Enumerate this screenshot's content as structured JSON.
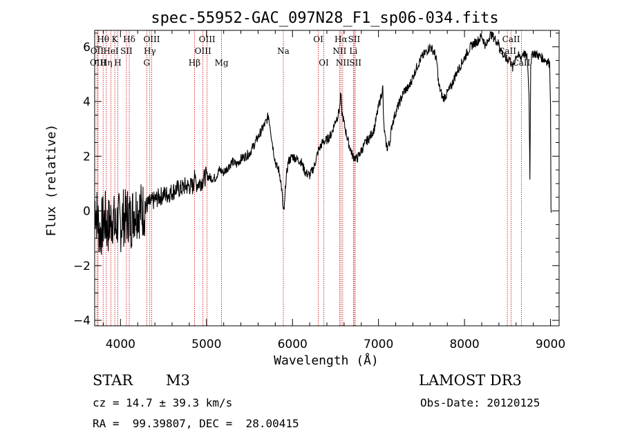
{
  "chart_data": {
    "type": "line",
    "title": "spec-55952-GAC_097N28_F1_sp06-034.fits",
    "xlabel": "Wavelength (Å)",
    "ylabel": "Flux (relative)",
    "xlim": [
      3700,
      9100
    ],
    "ylim": [
      -4.2,
      6.6
    ],
    "xticks": [
      4000,
      5000,
      6000,
      7000,
      8000,
      9000
    ],
    "yticks": [
      -4,
      -2,
      0,
      2,
      4,
      6
    ],
    "series": [
      {
        "name": "spectrum",
        "x": [
          3700,
          3730,
          3760,
          3790,
          3820,
          3850,
          3880,
          3910,
          3940,
          3970,
          4000,
          4030,
          4060,
          4090,
          4120,
          4150,
          4200,
          4250,
          4300,
          4350,
          4400,
          4450,
          4500,
          4550,
          4600,
          4650,
          4700,
          4750,
          4800,
          4850,
          4861,
          4870,
          4900,
          4950,
          5000,
          5050,
          5100,
          5150,
          5200,
          5250,
          5300,
          5350,
          5400,
          5450,
          5500,
          5550,
          5600,
          5650,
          5700,
          5720,
          5740,
          5760,
          5780,
          5800,
          5820,
          5840,
          5860,
          5880,
          5890,
          5895,
          5900,
          5910,
          5920,
          5950,
          6000,
          6050,
          6100,
          6150,
          6200,
          6250,
          6300,
          6350,
          6400,
          6450,
          6500,
          6530,
          6550,
          6563,
          6575,
          6600,
          6620,
          6650,
          6700,
          6750,
          6800,
          6850,
          6900,
          6950,
          7000,
          7030,
          7050,
          7060,
          7080,
          7100,
          7130,
          7160,
          7200,
          7250,
          7300,
          7350,
          7400,
          7450,
          7500,
          7550,
          7600,
          7650,
          7680,
          7700,
          7750,
          7800,
          7850,
          7900,
          7950,
          8000,
          8050,
          8100,
          8150,
          8200,
          8250,
          8300,
          8350,
          8400,
          8450,
          8498,
          8520,
          8542,
          8560,
          8600,
          8662,
          8680,
          8700,
          8730,
          8750,
          8760,
          8770,
          8780,
          8800,
          8850,
          8900,
          8950,
          8990,
          9000,
          9005,
          9010
        ],
        "values": [
          0.3,
          -0.2,
          -0.8,
          -0.5,
          -0.3,
          -0.6,
          -0.4,
          -0.2,
          -0.7,
          -0.3,
          -0.5,
          -0.2,
          -0.3,
          -0.1,
          -0.4,
          0.0,
          0.1,
          0.0,
          0.2,
          0.3,
          0.4,
          0.5,
          0.6,
          0.6,
          0.7,
          0.8,
          0.8,
          0.9,
          0.9,
          0.9,
          1.6,
          1.0,
          1.0,
          1.1,
          1.3,
          1.2,
          1.2,
          1.5,
          1.4,
          1.6,
          1.8,
          1.7,
          1.9,
          2.0,
          2.1,
          2.4,
          2.7,
          3.0,
          3.3,
          3.5,
          3.1,
          2.6,
          2.2,
          1.8,
          1.6,
          1.5,
          1.2,
          0.6,
          0.1,
          0.0,
          0.0,
          0.3,
          1.0,
          1.8,
          2.0,
          1.9,
          1.8,
          1.4,
          1.3,
          1.6,
          2.2,
          2.5,
          2.6,
          2.8,
          3.3,
          3.5,
          3.8,
          4.3,
          3.6,
          3.2,
          2.9,
          2.5,
          2.0,
          1.9,
          2.2,
          2.5,
          2.7,
          3.0,
          3.8,
          4.2,
          4.5,
          3.2,
          2.6,
          2.3,
          2.5,
          3.2,
          3.6,
          4.0,
          4.4,
          4.5,
          4.9,
          5.3,
          5.6,
          5.8,
          6.0,
          5.8,
          5.4,
          4.6,
          4.1,
          4.3,
          4.6,
          5.0,
          5.3,
          5.6,
          5.9,
          6.1,
          6.2,
          6.4,
          6.0,
          6.5,
          6.3,
          6.1,
          5.7,
          5.5,
          5.6,
          5.4,
          5.2,
          5.7,
          5.6,
          5.8,
          5.7,
          5.6,
          4.3,
          1.2,
          5.4,
          5.6,
          5.8,
          5.7,
          5.6,
          5.5,
          5.4,
          4.0,
          0.0,
          0.0
        ]
      }
    ],
    "line_labels": [
      {
        "text": "Hθ",
        "wave": 3798,
        "row": 1
      },
      {
        "text": "OII",
        "wave": 3727,
        "row": 2
      },
      {
        "text": "OIII",
        "wave": 3740,
        "row": 3
      },
      {
        "text": "K",
        "wave": 3934,
        "row": 1
      },
      {
        "text": "HeI",
        "wave": 3889,
        "row": 2
      },
      {
        "text": "Hη",
        "wave": 3835,
        "row": 3
      },
      {
        "text": "SII",
        "wave": 4069,
        "row": 2
      },
      {
        "text": "H",
        "wave": 3969,
        "row": 3
      },
      {
        "text": "Hδ",
        "wave": 4102,
        "row": 1
      },
      {
        "text": "OIII",
        "wave": 4363,
        "row": 1
      },
      {
        "text": "Hγ",
        "wave": 4341,
        "row": 2
      },
      {
        "text": "G",
        "wave": 4305,
        "row": 3
      },
      {
        "text": "OIII",
        "wave": 5007,
        "row": 1
      },
      {
        "text": "OIII",
        "wave": 4959,
        "row": 2
      },
      {
        "text": "Hβ",
        "wave": 4861,
        "row": 3
      },
      {
        "text": "Mg",
        "wave": 5175,
        "row": 3
      },
      {
        "text": "Na",
        "wave": 5893,
        "row": 2
      },
      {
        "text": "OI",
        "wave": 6300,
        "row": 1
      },
      {
        "text": "OI",
        "wave": 6364,
        "row": 3
      },
      {
        "text": "Hα",
        "wave": 6563,
        "row": 1
      },
      {
        "text": "NII",
        "wave": 6548,
        "row": 2
      },
      {
        "text": "NII",
        "wave": 6584,
        "row": 3
      },
      {
        "text": "SII",
        "wave": 6717,
        "row": 1
      },
      {
        "text": "Li",
        "wave": 6708,
        "row": 2
      },
      {
        "text": "SII",
        "wave": 6731,
        "row": 3
      },
      {
        "text": "CaII",
        "wave": 8542,
        "row": 1
      },
      {
        "text": "CaII",
        "wave": 8498,
        "row": 2
      },
      {
        "text": "CaII",
        "wave": 8662,
        "row": 3
      }
    ],
    "marker_lines": [
      3727,
      3740,
      3798,
      3835,
      3889,
      3934,
      3969,
      4069,
      4102,
      4305,
      4341,
      4363,
      4861,
      4959,
      5007,
      5175,
      5893,
      6300,
      6364,
      6548,
      6563,
      6584,
      6708,
      6717,
      6731,
      8498,
      8542,
      8662
    ],
    "colors": {
      "spectrum": "#000000",
      "marker": "#cc0000",
      "axis": "#000000"
    }
  },
  "footer": {
    "object_class": "STAR",
    "subclass": "M3",
    "survey": "LAMOST DR3",
    "cz": "cz = 14.7 ± 39.3 km/s",
    "obs_date": "Obs-Date: 20120125",
    "coords": "RA =  99.39807, DEC =  28.00415"
  }
}
